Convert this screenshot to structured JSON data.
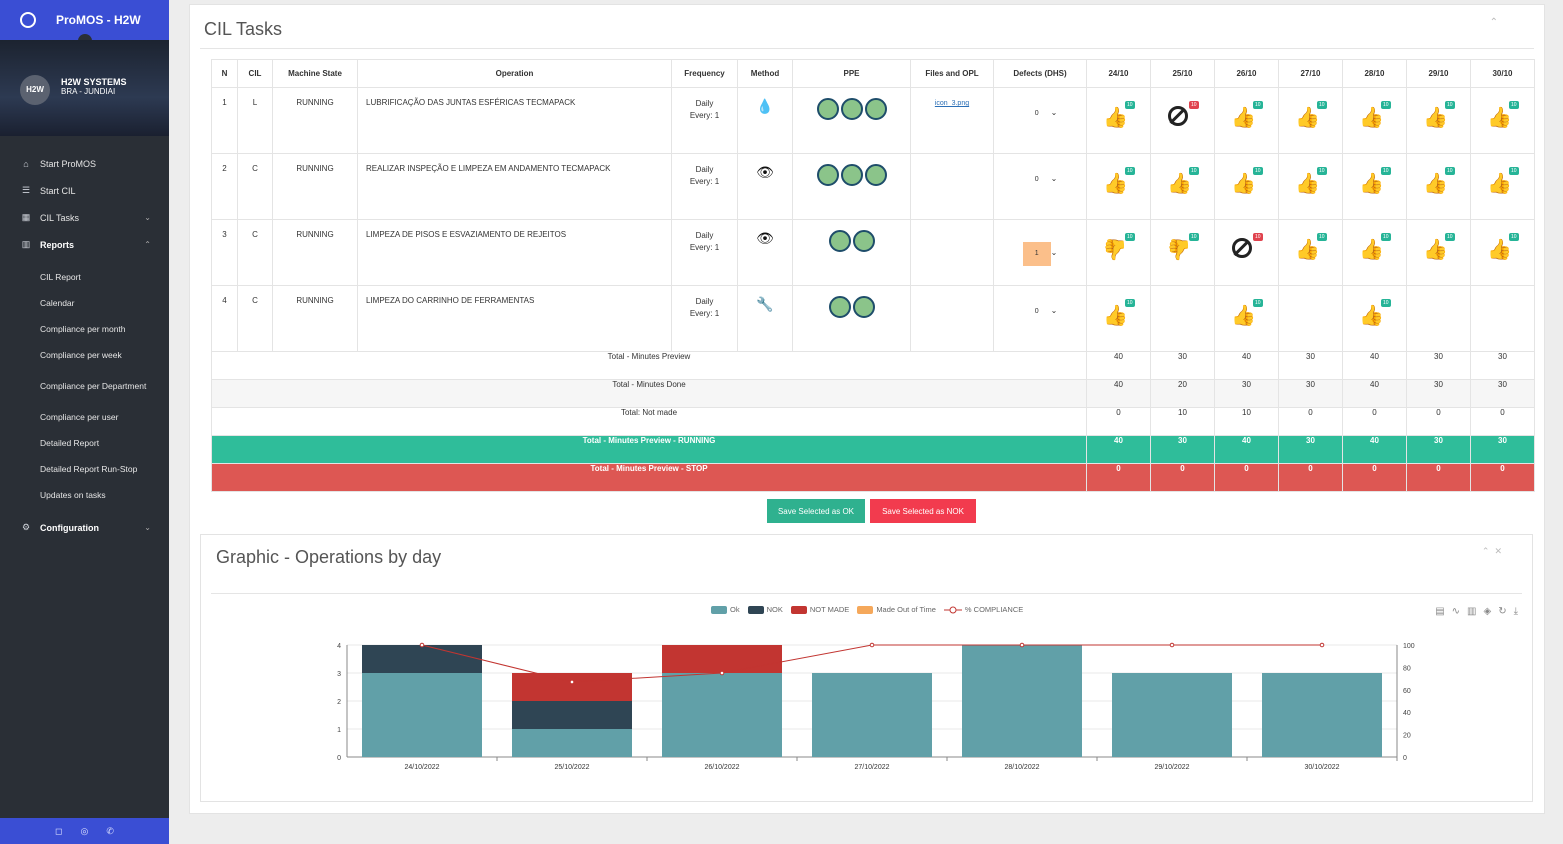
{
  "app": {
    "title": "ProMOS - H2W"
  },
  "user": {
    "initials": "H2W",
    "name": "H2W SYSTEMS",
    "location": "BRA - JUNDIAI"
  },
  "menu": [
    {
      "label": "Start ProMOS",
      "icon": "home-icon"
    },
    {
      "label": "Start CIL",
      "icon": "list-icon"
    },
    {
      "label": "CIL Tasks",
      "icon": "calendar-icon",
      "caret": "⌄"
    },
    {
      "label": "Reports",
      "icon": "bar-chart-icon",
      "caret": "⌃"
    }
  ],
  "reports_sub": [
    "CIL Report",
    "Calendar",
    "Compliance per month",
    "Compliance per week",
    "Compliance per Department",
    "Compliance per user",
    "Detailed Report",
    "Detailed Report Run-Stop",
    "Updates on tasks"
  ],
  "configuration": {
    "label": "Configuration",
    "caret": "⌄"
  },
  "cil": {
    "title": "CIL Tasks",
    "headers": [
      "N",
      "CIL",
      "Machine State",
      "Operation",
      "Frequency",
      "Method",
      "PPE",
      "Files and OPL",
      "Defects (DHS)"
    ],
    "days": [
      "24/10",
      "25/10",
      "26/10",
      "27/10",
      "28/10",
      "29/10",
      "30/10"
    ],
    "rows": [
      {
        "n": "1",
        "cil": "L",
        "state": "RUNNING",
        "operation": "LUBRIFICAÇÃO DAS JUNTAS ESFÉRICAS TECMAPACK",
        "freq1": "Daily",
        "freq2": "Every: 1",
        "method": "drop-icon",
        "ppe": 3,
        "file": "icon_3.png",
        "defects": "0",
        "cells": [
          [
            "up",
            "10",
            "g"
          ],
          [
            "ban",
            "10",
            "r"
          ],
          [
            "up",
            "10",
            "g"
          ],
          [
            "up",
            "10",
            "g"
          ],
          [
            "up",
            "10",
            "g"
          ],
          [
            "up",
            "10",
            "g"
          ],
          [
            "up",
            "10",
            "g"
          ]
        ]
      },
      {
        "n": "2",
        "cil": "C",
        "state": "RUNNING",
        "operation": "REALIZAR INSPEÇÃO E LIMPEZA EM ANDAMENTO TECMAPACK",
        "freq1": "Daily",
        "freq2": "Every: 1",
        "method": "eye-icon",
        "ppe": 3,
        "file": "",
        "defects": "0",
        "cells": [
          [
            "up",
            "10",
            "g"
          ],
          [
            "up",
            "10",
            "g"
          ],
          [
            "up",
            "10",
            "g"
          ],
          [
            "up",
            "10",
            "g"
          ],
          [
            "up",
            "10",
            "g"
          ],
          [
            "up",
            "10",
            "g"
          ],
          [
            "up",
            "10",
            "g"
          ]
        ]
      },
      {
        "n": "3",
        "cil": "C",
        "state": "RUNNING",
        "operation": "LIMPEZA DE PISOS E ESVAZIAMENTO DE REJEITOS",
        "freq1": "Daily",
        "freq2": "Every: 1",
        "method": "eye-icon",
        "ppe": 2,
        "file": "",
        "defects": "1",
        "cells": [
          [
            "down",
            "10",
            "g"
          ],
          [
            "down",
            "10",
            "g"
          ],
          [
            "ban",
            "10",
            "r"
          ],
          [
            "up",
            "10",
            "g"
          ],
          [
            "up",
            "10",
            "g"
          ],
          [
            "up",
            "10",
            "g"
          ],
          [
            "up",
            "10",
            "g"
          ]
        ]
      },
      {
        "n": "4",
        "cil": "C",
        "state": "RUNNING",
        "operation": "LIMPEZA DO CARRINHO DE FERRAMENTAS",
        "freq1": "Daily",
        "freq2": "Every: 1",
        "method": "wrench-icon",
        "ppe": 2,
        "file": "",
        "defects": "0",
        "cells": [
          [
            "up",
            "10",
            "g"
          ],
          null,
          [
            "up",
            "10",
            "g"
          ],
          null,
          [
            "up",
            "10",
            "g"
          ],
          null,
          null
        ]
      }
    ],
    "totals": [
      {
        "label": "Total - Minutes Preview",
        "values": [
          "40",
          "30",
          "40",
          "30",
          "40",
          "30",
          "30"
        ]
      },
      {
        "label": "Total - Minutes Done",
        "values": [
          "40",
          "20",
          "30",
          "30",
          "40",
          "30",
          "30"
        ]
      },
      {
        "label": "Total: Not made",
        "values": [
          "0",
          "10",
          "10",
          "0",
          "0",
          "0",
          "0"
        ]
      },
      {
        "label": "Total - Minutes Preview - RUNNING",
        "values": [
          "40",
          "30",
          "40",
          "30",
          "40",
          "30",
          "30"
        ]
      },
      {
        "label": "Total - Minutes Preview - STOP",
        "values": [
          "0",
          "0",
          "0",
          "0",
          "0",
          "0",
          "0"
        ]
      }
    ],
    "save_ok": "Save Selected as OK",
    "save_nok": "Save Selected as NOK"
  },
  "graph": {
    "title": "Graphic - Operations by day",
    "colors": {
      "ok": "#61a0a8",
      "nok": "#2f4554",
      "notmade": "#c23531",
      "outoftime": "#f5a85b",
      "compliance": "#c23531"
    }
  },
  "chart_data": {
    "type": "bar",
    "categories": [
      "24/10/2022",
      "25/10/2022",
      "26/10/2022",
      "27/10/2022",
      "28/10/2022",
      "29/10/2022",
      "30/10/2022"
    ],
    "series": [
      {
        "name": "Ok",
        "values": [
          3,
          1,
          3,
          3,
          4,
          3,
          3
        ]
      },
      {
        "name": "NOK",
        "values": [
          1,
          1,
          0,
          0,
          0,
          0,
          0
        ]
      },
      {
        "name": "NOT MADE",
        "values": [
          0,
          1,
          1,
          0,
          0,
          0,
          0
        ]
      },
      {
        "name": "Made Out of Time",
        "values": [
          0,
          0,
          0,
          0,
          0,
          0,
          0
        ]
      },
      {
        "name": "% COMPLIANCE",
        "values": [
          100,
          67,
          75,
          100,
          100,
          100,
          100
        ],
        "axis": "right",
        "type": "line"
      }
    ],
    "stacked": true,
    "ylim": [
      0,
      4
    ],
    "y2lim": [
      0,
      100
    ],
    "yticks": [
      "0",
      "1",
      "2",
      "3",
      "4"
    ],
    "y2ticks": [
      "0",
      "20",
      "40",
      "60",
      "80",
      "100"
    ],
    "legend": "top-center"
  }
}
